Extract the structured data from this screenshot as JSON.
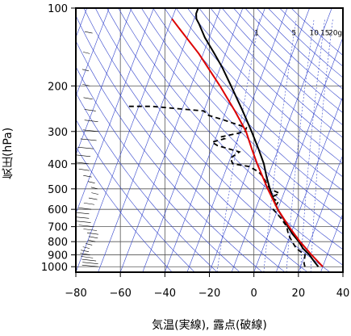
{
  "chart_data": {
    "type": "line",
    "subtype": "skew-T log-p sounding diagram",
    "xlabel": "気温(実線), 露点(破線)",
    "ylabel": "気圧(hPa)",
    "xlim": [
      -80,
      40
    ],
    "ylim": [
      1050,
      100
    ],
    "y_scale": "log",
    "x_ticks": [
      -80,
      -60,
      -40,
      -20,
      0,
      20,
      40
    ],
    "x_tick_labels": [
      "−80",
      "−60",
      "−40",
      "−20",
      "0",
      "20",
      "40"
    ],
    "y_ticks": [
      100,
      200,
      300,
      400,
      500,
      600,
      700,
      800,
      900,
      1000
    ],
    "grid": true,
    "mixing_ratio_labels": [
      "1",
      "5",
      "10",
      "15",
      "20g"
    ],
    "mixing_ratio_lines_gkg": [
      1,
      5,
      10,
      15,
      20
    ],
    "series": [
      {
        "role": "temperature",
        "line": "solid",
        "color": "#000000",
        "points": [
          [
            1000,
            28
          ],
          [
            950,
            25
          ],
          [
            925,
            23.5
          ],
          [
            900,
            22
          ],
          [
            850,
            18
          ],
          [
            800,
            15
          ],
          [
            750,
            11
          ],
          [
            700,
            7.5
          ],
          [
            650,
            4
          ],
          [
            600,
            0
          ],
          [
            550,
            -3.5
          ],
          [
            500,
            -7
          ],
          [
            450,
            -10.5
          ],
          [
            400,
            -14
          ],
          [
            350,
            -19
          ],
          [
            300,
            -25
          ],
          [
            250,
            -32.5
          ],
          [
            200,
            -42
          ],
          [
            170,
            -49
          ],
          [
            150,
            -55
          ],
          [
            130,
            -62
          ],
          [
            115,
            -67
          ],
          [
            110,
            -69
          ],
          [
            105,
            -70
          ],
          [
            100,
            -70
          ]
        ]
      },
      {
        "role": "dewpoint",
        "line": "dashed",
        "color": "#000000",
        "points": [
          [
            1000,
            22
          ],
          [
            970,
            21
          ],
          [
            900,
            20
          ],
          [
            850,
            15
          ],
          [
            800,
            12
          ],
          [
            750,
            9
          ],
          [
            700,
            7
          ],
          [
            650,
            3
          ],
          [
            600,
            -2
          ],
          [
            560,
            -1
          ],
          [
            540,
            -5
          ],
          [
            520,
            -2
          ],
          [
            500,
            -7
          ],
          [
            470,
            -10
          ],
          [
            450,
            -12
          ],
          [
            430,
            -15
          ],
          [
            410,
            -20
          ],
          [
            400,
            -28
          ],
          [
            380,
            -30
          ],
          [
            360,
            -27
          ],
          [
            340,
            -38
          ],
          [
            330,
            -41
          ],
          [
            320,
            -36
          ],
          [
            315,
            -38
          ],
          [
            305,
            -31
          ],
          [
            300,
            -28
          ],
          [
            290,
            -28
          ],
          [
            270,
            -40
          ],
          [
            260,
            -47
          ],
          [
            250,
            -50
          ],
          [
            240,
            -74
          ],
          [
            240,
            -85
          ]
        ]
      },
      {
        "role": "reference-adiabat",
        "line": "solid",
        "color": "#dd0000",
        "points": [
          [
            1000,
            30
          ],
          [
            900,
            23
          ],
          [
            800,
            15.5
          ],
          [
            700,
            8
          ],
          [
            600,
            0
          ],
          [
            500,
            -8
          ],
          [
            400,
            -17
          ],
          [
            350,
            -22
          ],
          [
            300,
            -27.5
          ],
          [
            250,
            -36
          ],
          [
            200,
            -47
          ],
          [
            150,
            -62
          ],
          [
            120,
            -75
          ],
          [
            110,
            -80
          ]
        ]
      }
    ],
    "wind_profile": "wind barbs along the left edge of the plot"
  }
}
